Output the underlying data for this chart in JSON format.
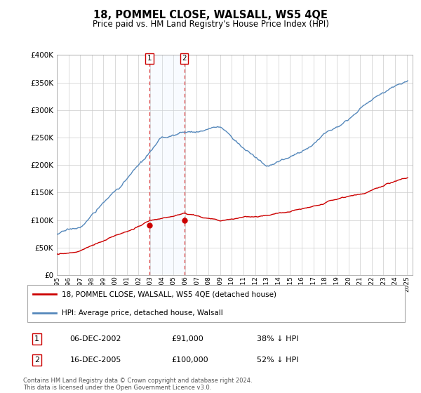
{
  "title": "18, POMMEL CLOSE, WALSALL, WS5 4QE",
  "subtitle": "Price paid vs. HM Land Registry's House Price Index (HPI)",
  "hpi_label": "HPI: Average price, detached house, Walsall",
  "property_label": "18, POMMEL CLOSE, WALSALL, WS5 4QE (detached house)",
  "footnote": "Contains HM Land Registry data © Crown copyright and database right 2024.\nThis data is licensed under the Open Government Licence v3.0.",
  "sale1_date": "06-DEC-2002",
  "sale1_price": "£91,000",
  "sale1_hpi": "38% ↓ HPI",
  "sale2_date": "16-DEC-2005",
  "sale2_price": "£100,000",
  "sale2_hpi": "52% ↓ HPI",
  "property_color": "#cc0000",
  "hpi_color": "#5588bb",
  "vline_color": "#dd4444",
  "shade_color": "#ddeeff",
  "ylim": [
    0,
    400000
  ],
  "yticks": [
    0,
    50000,
    100000,
    150000,
    200000,
    250000,
    300000,
    350000,
    400000
  ],
  "ytick_labels": [
    "£0",
    "£50K",
    "£100K",
    "£150K",
    "£200K",
    "£250K",
    "£300K",
    "£350K",
    "£400K"
  ],
  "xlim_start": 1995,
  "xlim_end": 2025.5,
  "sale1_x": 2002.92,
  "sale2_x": 2005.92,
  "sale1_y": 91000,
  "sale2_y": 100000
}
